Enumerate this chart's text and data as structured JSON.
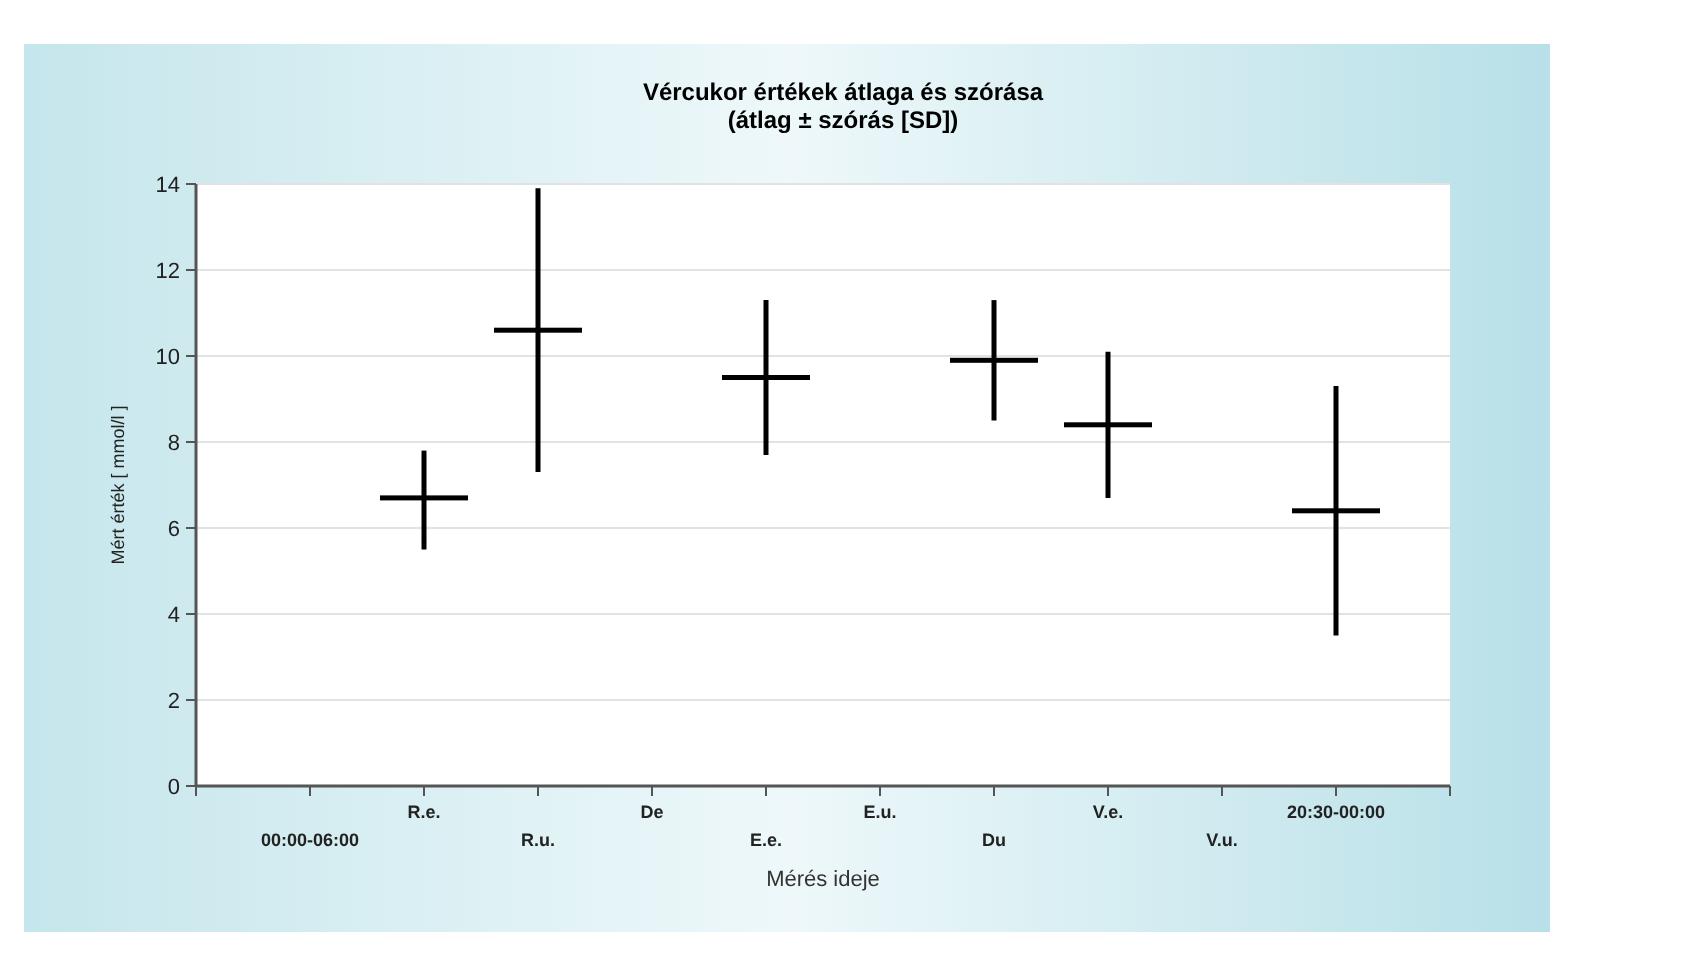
{
  "chart_data": {
    "type": "candlestick",
    "title": "Vércukor értékek átlaga és szórása",
    "subtitle": "(átlag ± szórás [SD])",
    "xlabel": "Mérés ideje",
    "ylabel": "Mért érték [ mmol/l ]",
    "categories": [
      "00:00-06:00",
      "R.e.",
      "R.u.",
      "De",
      "E.e.",
      "E.u.",
      "Du",
      "V.e.",
      "V.u.",
      "20:30-00:00"
    ],
    "ohlc": [
      null,
      [
        6.7,
        7.8,
        5.5,
        6.7
      ],
      [
        10.6,
        13.9,
        7.3,
        10.6
      ],
      null,
      [
        9.5,
        11.3,
        7.7,
        9.5
      ],
      null,
      [
        9.9,
        11.3,
        8.5,
        9.9
      ],
      [
        8.4,
        10.1,
        6.7,
        8.4
      ],
      null,
      [
        6.4,
        9.3,
        3.5,
        6.4
      ]
    ],
    "color": "#000000",
    "ylim": [
      0,
      14
    ],
    "yticks": [
      0,
      2,
      4,
      6,
      8,
      10,
      12,
      14
    ],
    "grid": "y"
  }
}
